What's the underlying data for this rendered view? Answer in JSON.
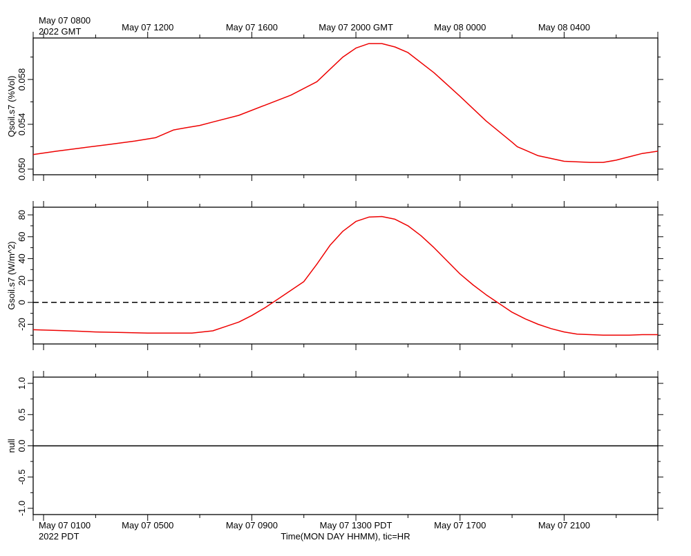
{
  "top_axis": {
    "timezone_label": "2022 GMT",
    "tick_labels": [
      "May 07 0800",
      "May 07 1200",
      "May 07 1600",
      "May 07 2000 GMT",
      "May 08 0000",
      "May 08 0400"
    ]
  },
  "bottom_axis": {
    "timezone_label": "2022 PDT",
    "xlabel": "Time(MON DAY HHMM), tic=HR",
    "tick_labels": [
      "May 07 0100",
      "May 07 0500",
      "May 07 0900",
      "May 07 1300 PDT",
      "May 07 1700",
      "May 07 2100"
    ]
  },
  "chart_data": [
    {
      "type": "line",
      "ylabel": "Qsoil.s7 (%Vol)",
      "ylim": [
        0.0495,
        0.0617
      ],
      "yticks": [
        0.05,
        0.054,
        0.058
      ],
      "ytick_labels": [
        "0.050",
        "0.054",
        "0.058"
      ],
      "xlim": [
        0.6,
        24.6
      ],
      "x_unit": "hours after May 07 0000 PDT",
      "x": [
        0.6,
        1.5,
        2.5,
        3.5,
        4.5,
        5.3,
        5.6,
        6.0,
        6.5,
        7.0,
        7.5,
        8.5,
        9.5,
        10.5,
        11.5,
        12.0,
        12.5,
        13.0,
        13.5,
        14.0,
        14.5,
        15.0,
        16.0,
        17.0,
        18.0,
        19.0,
        19.2,
        20.0,
        21.0,
        22.0,
        22.5,
        23.0,
        23.5,
        24.0,
        24.6
      ],
      "series": [
        {
          "color": "#ee0000",
          "values": [
            0.0513,
            0.0516,
            0.0519,
            0.0522,
            0.0525,
            0.0528,
            0.0531,
            0.0535,
            0.0537,
            0.0539,
            0.0542,
            0.0548,
            0.0557,
            0.0566,
            0.0578,
            0.0589,
            0.06,
            0.0608,
            0.0612,
            0.0612,
            0.0609,
            0.0604,
            0.0586,
            0.0565,
            0.0543,
            0.0524,
            0.052,
            0.0512,
            0.0507,
            0.0506,
            0.0506,
            0.0508,
            0.0511,
            0.0514,
            0.0516
          ]
        }
      ]
    },
    {
      "type": "line",
      "ylabel": "Gsoil.s7 (W/m^2)",
      "ylim": [
        -38,
        87
      ],
      "yticks": [
        -20,
        0,
        20,
        40,
        60,
        80
      ],
      "ytick_labels": [
        "-20",
        "0",
        "20",
        "40",
        "60",
        "80"
      ],
      "reference_line": {
        "y": 0,
        "style": "dashed"
      },
      "xlim": [
        0.6,
        24.6
      ],
      "x": [
        0.6,
        2,
        3,
        4,
        5,
        6,
        6.7,
        7.5,
        8,
        8.5,
        9,
        9.5,
        10,
        11,
        11.5,
        12,
        12.5,
        13,
        13.5,
        14,
        14.5,
        15,
        15.5,
        16,
        16.5,
        17,
        17.5,
        18,
        18.5,
        19,
        19.5,
        20,
        20.5,
        21,
        21.5,
        22,
        22.5,
        23,
        23.5,
        24,
        24.6
      ],
      "series": [
        {
          "color": "#ee0000",
          "values": [
            -25,
            -26,
            -27,
            -27.5,
            -28,
            -28,
            -28,
            -26,
            -22,
            -18,
            -12,
            -5,
            3,
            19,
            35,
            52,
            65,
            74,
            78,
            78.5,
            76,
            70,
            61,
            50,
            38,
            26,
            16,
            7,
            -1,
            -9,
            -15,
            -20,
            -24,
            -27,
            -29,
            -29.5,
            -30,
            -30,
            -30,
            -29.5,
            -29.5
          ]
        }
      ]
    },
    {
      "type": "line",
      "ylabel": "null",
      "ylim": [
        -1.1,
        1.1
      ],
      "yticks": [
        -1.0,
        -0.5,
        0.0,
        0.5,
        1.0
      ],
      "ytick_labels": [
        "-1.0",
        "-0.5",
        "0.0",
        "0.5",
        "1.0"
      ],
      "xlim": [
        0.6,
        24.6
      ],
      "x": [
        0.6,
        24.6
      ],
      "series": [
        {
          "color": "#000000",
          "values": [
            0.0,
            0.0
          ]
        }
      ]
    }
  ]
}
